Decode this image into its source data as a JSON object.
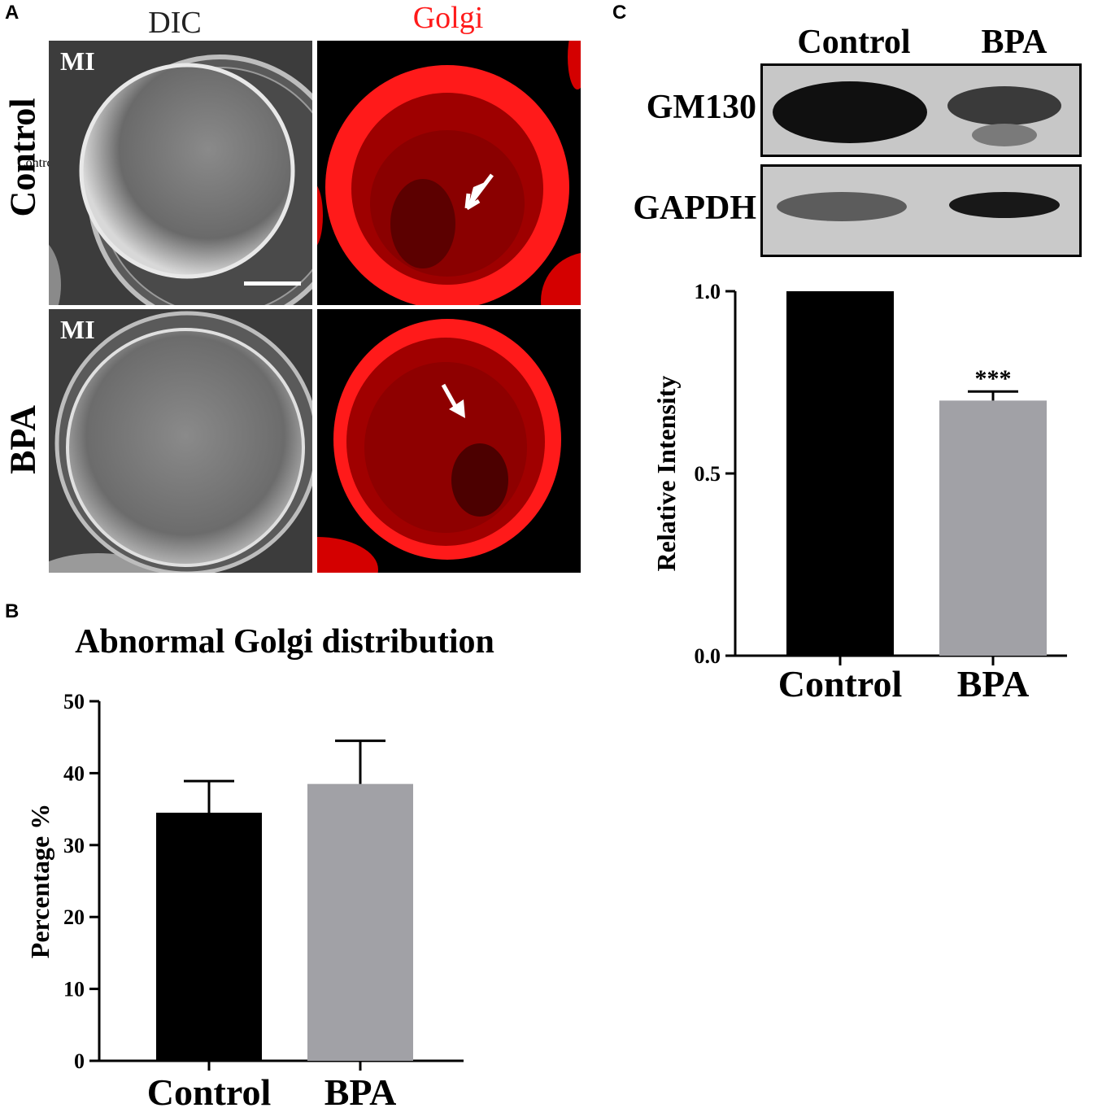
{
  "panels": {
    "A": {
      "letter": "A",
      "columns": [
        "DIC",
        "Golgi"
      ],
      "rows": [
        "Control",
        "BPA"
      ],
      "stage_label": "MI",
      "column_colors": [
        "#222222",
        "#ff1a1a"
      ]
    },
    "B": {
      "letter": "B"
    },
    "C": {
      "letter": "C",
      "blot_lanes": [
        "Control",
        "BPA"
      ],
      "blot_rows": [
        "GM130",
        "GAPDH"
      ]
    }
  },
  "chart_data": [
    {
      "id": "B",
      "type": "bar",
      "title": "Abnormal Golgi distribution",
      "xlabel": "",
      "ylabel": "Percentage %",
      "categories": [
        "Control",
        "BPA"
      ],
      "values": [
        34.5,
        38.5
      ],
      "errors": [
        4.4,
        6.0
      ],
      "ylim": [
        0,
        50
      ],
      "yticks": [
        0,
        10,
        20,
        30,
        40,
        50
      ],
      "colors": [
        "#000000",
        "#a1a1a6"
      ],
      "grid": false
    },
    {
      "id": "C",
      "type": "bar",
      "title": "",
      "xlabel": "",
      "ylabel": "Relative Intensity",
      "categories": [
        "Control",
        "BPA"
      ],
      "values": [
        1.0,
        0.7
      ],
      "errors": [
        0,
        0.025
      ],
      "significance": [
        "",
        "***"
      ],
      "ylim": [
        0,
        1.0
      ],
      "yticks": [
        "0.0",
        "0.5",
        "1.0"
      ],
      "colors": [
        "#000000",
        "#a1a1a6"
      ],
      "grid": false
    }
  ]
}
